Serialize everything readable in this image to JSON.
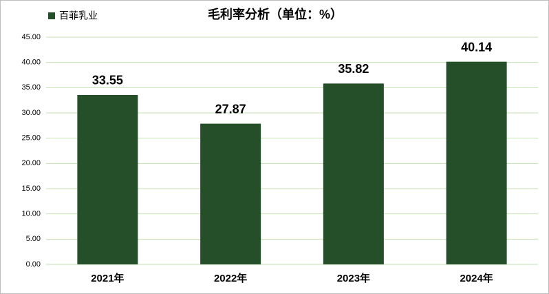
{
  "chart_data": {
    "type": "bar",
    "title": "毛利率分析（单位：%）",
    "categories": [
      "2021年",
      "2022年",
      "2023年",
      "2024年"
    ],
    "series": [
      {
        "name": "百菲乳业",
        "color": "#244f28",
        "values": [
          33.55,
          27.87,
          35.82,
          40.14
        ]
      }
    ],
    "ylim": [
      0,
      45
    ],
    "yticks": [
      {
        "value": 0,
        "label": "0.00"
      },
      {
        "value": 5,
        "label": "5.00"
      },
      {
        "value": 10,
        "label": "10.00"
      },
      {
        "value": 15,
        "label": "15.00"
      },
      {
        "value": 20,
        "label": "20.00"
      },
      {
        "value": 25,
        "label": "25.00"
      },
      {
        "value": 30,
        "label": "30.00"
      },
      {
        "value": 35,
        "label": "35.00"
      },
      {
        "value": 40,
        "label": "40.00"
      },
      {
        "value": 45,
        "label": "45.00"
      }
    ],
    "grid": true,
    "legend": "top-left"
  }
}
